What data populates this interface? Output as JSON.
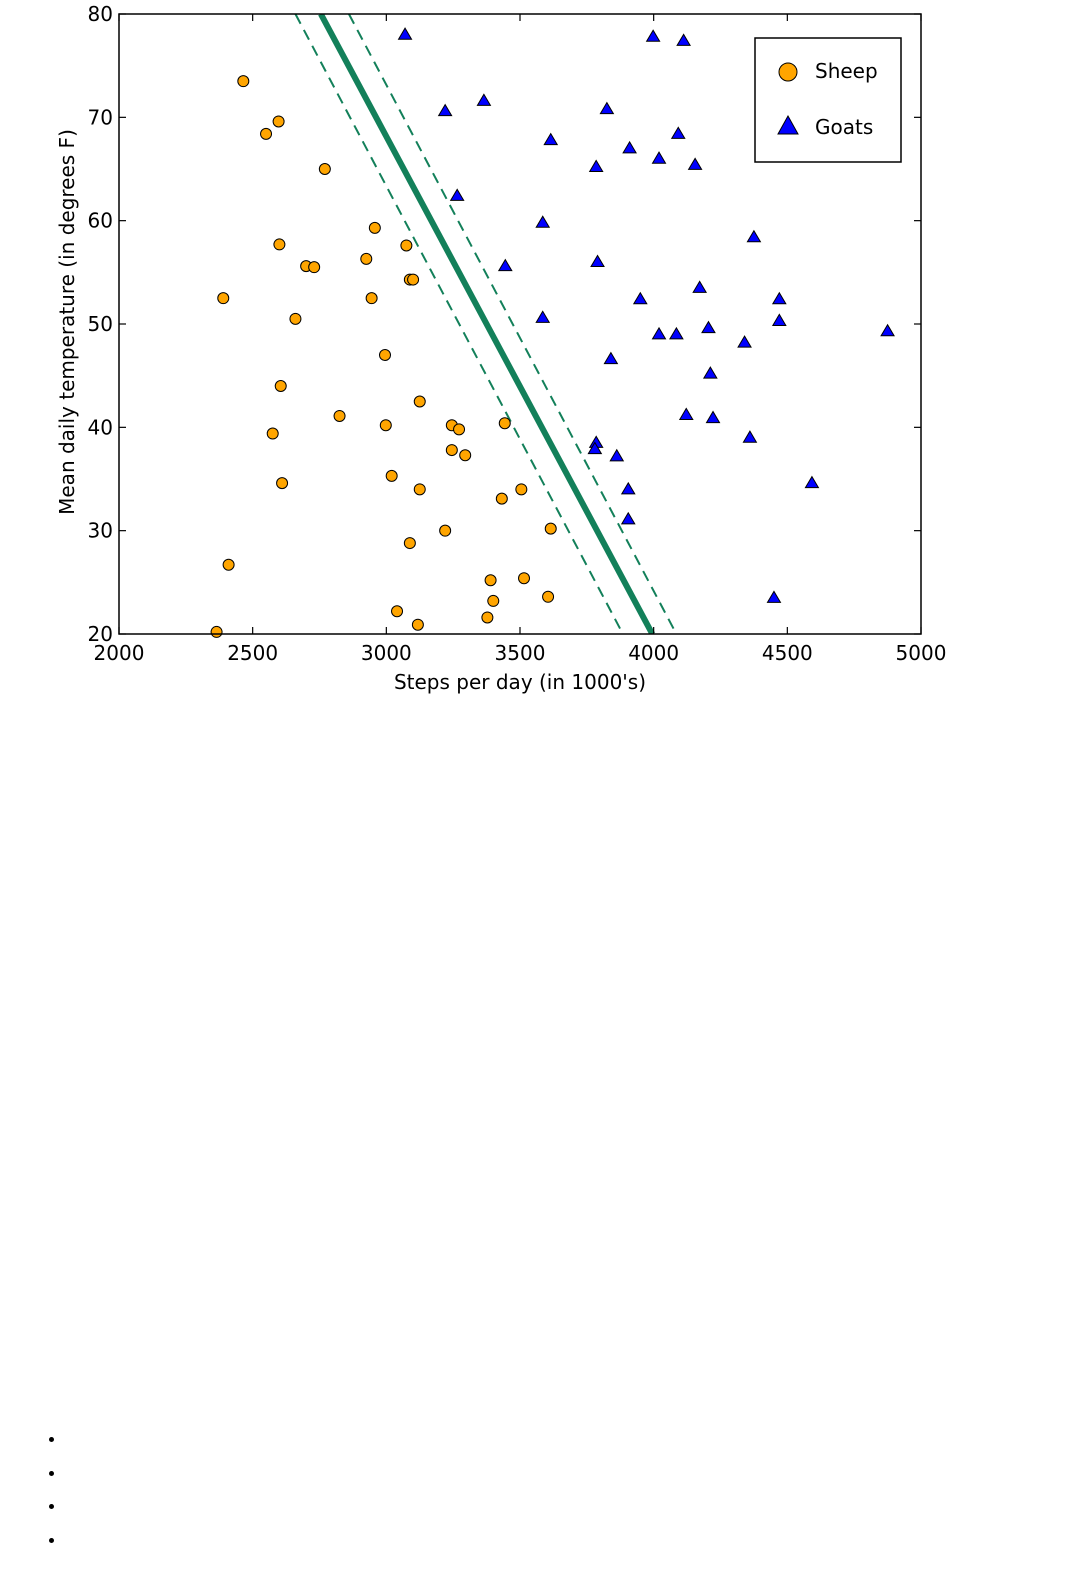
{
  "chart_data": {
    "type": "scatter",
    "xlabel": "Steps per day (in 1000's)",
    "ylabel": "Mean daily temperature (in degrees F)",
    "xlim": [
      2000,
      5000
    ],
    "ylim": [
      20,
      80
    ],
    "xticks": [
      2000,
      2500,
      3000,
      3500,
      4000,
      4500,
      5000
    ],
    "yticks": [
      20,
      30,
      40,
      50,
      60,
      70,
      80
    ],
    "grid": false,
    "legend_position": "top-right",
    "decision_boundary": {
      "solid": [
        [
          2755,
          80
        ],
        [
          3995,
          20
        ]
      ],
      "dashed_upper": [
        [
          2860,
          80
        ],
        [
          4085,
          20
        ]
      ],
      "dashed_lower": [
        [
          2660,
          80
        ],
        [
          3885,
          20
        ]
      ],
      "color": "#13805a"
    },
    "series": [
      {
        "name": "Sheep",
        "marker": "circle",
        "color": "#ffa500",
        "points": [
          [
            2465,
            73.5
          ],
          [
            2550,
            68.4
          ],
          [
            2597,
            69.6
          ],
          [
            2770,
            65.0
          ],
          [
            2957,
            59.3
          ],
          [
            2600,
            57.7
          ],
          [
            3075,
            57.6
          ],
          [
            2925,
            56.3
          ],
          [
            2700,
            55.6
          ],
          [
            2730,
            55.5
          ],
          [
            3088,
            54.3
          ],
          [
            3100,
            54.3
          ],
          [
            2390,
            52.5
          ],
          [
            2945,
            52.5
          ],
          [
            2660,
            50.5
          ],
          [
            2995,
            47.0
          ],
          [
            2605,
            44.0
          ],
          [
            3125,
            42.5
          ],
          [
            2825,
            41.1
          ],
          [
            2998,
            40.2
          ],
          [
            3245,
            40.2
          ],
          [
            3272,
            39.8
          ],
          [
            2575,
            39.4
          ],
          [
            3443,
            40.4
          ],
          [
            3245,
            37.8
          ],
          [
            3295,
            37.3
          ],
          [
            3020,
            35.3
          ],
          [
            2610,
            34.6
          ],
          [
            3125,
            34.0
          ],
          [
            3505,
            34.0
          ],
          [
            3432,
            33.1
          ],
          [
            3220,
            30.0
          ],
          [
            3615,
            30.2
          ],
          [
            3088,
            28.8
          ],
          [
            2410,
            26.7
          ],
          [
            3390,
            25.2
          ],
          [
            3515,
            25.4
          ],
          [
            3400,
            23.2
          ],
          [
            3605,
            23.6
          ],
          [
            3040,
            22.2
          ],
          [
            3378,
            21.6
          ],
          [
            3118,
            20.9
          ],
          [
            2365,
            20.2
          ]
        ]
      },
      {
        "name": "Goats",
        "marker": "triangle",
        "color": "#0000ff",
        "points": [
          [
            3070,
            78.0
          ],
          [
            3998,
            77.8
          ],
          [
            4112,
            77.4
          ],
          [
            3365,
            71.6
          ],
          [
            3220,
            70.6
          ],
          [
            3825,
            70.8
          ],
          [
            4092,
            68.4
          ],
          [
            3615,
            67.8
          ],
          [
            3910,
            67.0
          ],
          [
            4020,
            66.0
          ],
          [
            4155,
            65.4
          ],
          [
            3785,
            65.2
          ],
          [
            3265,
            62.4
          ],
          [
            3585,
            59.8
          ],
          [
            4375,
            58.4
          ],
          [
            3790,
            56.0
          ],
          [
            3445,
            55.6
          ],
          [
            4172,
            53.5
          ],
          [
            3950,
            52.4
          ],
          [
            4470,
            52.4
          ],
          [
            3585,
            50.6
          ],
          [
            4470,
            50.3
          ],
          [
            4205,
            49.6
          ],
          [
            4020,
            49.0
          ],
          [
            4085,
            49.0
          ],
          [
            4875,
            49.3
          ],
          [
            4340,
            48.2
          ],
          [
            3840,
            46.6
          ],
          [
            4212,
            45.2
          ],
          [
            4122,
            41.2
          ],
          [
            4222,
            40.9
          ],
          [
            4360,
            39.0
          ],
          [
            3785,
            38.5
          ],
          [
            3780,
            37.9
          ],
          [
            3862,
            37.2
          ],
          [
            4592,
            34.6
          ],
          [
            3905,
            34.0
          ],
          [
            3905,
            31.1
          ],
          [
            4450,
            23.5
          ]
        ]
      }
    ]
  },
  "bullets": [
    "",
    "",
    "",
    ""
  ]
}
